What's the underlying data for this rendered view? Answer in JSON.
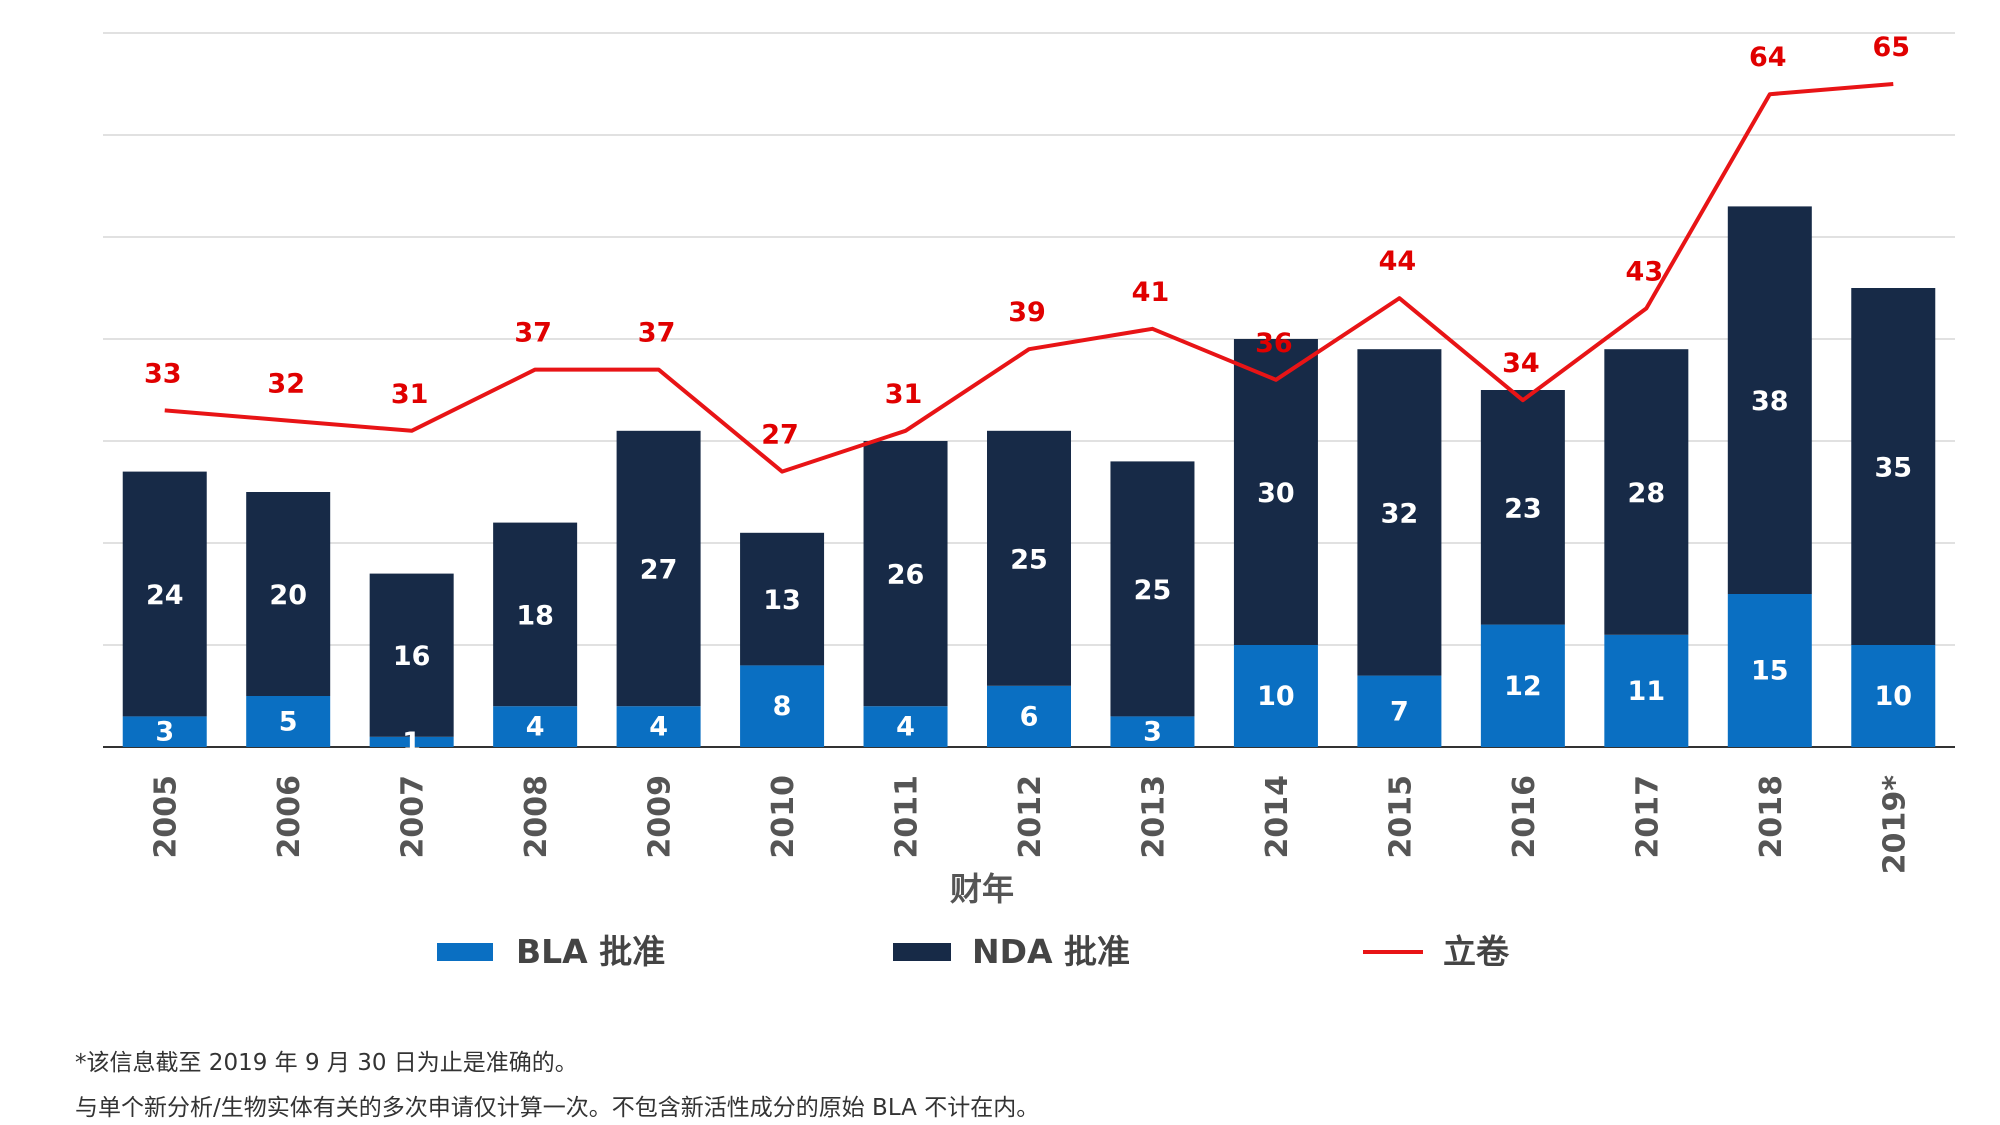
{
  "chart_data": {
    "type": "bar",
    "stacked": true,
    "categories": [
      "2005",
      "2006",
      "2007",
      "2008",
      "2009",
      "2010",
      "2011",
      "2012",
      "2013",
      "2014",
      "2015",
      "2016",
      "2017",
      "2018",
      "2019*"
    ],
    "series": [
      {
        "name": "BLA 批准",
        "kind": "bar",
        "color": "#0a6fc2",
        "values": [
          3,
          5,
          1,
          4,
          4,
          8,
          4,
          6,
          3,
          10,
          7,
          12,
          11,
          15,
          10
        ]
      },
      {
        "name": "NDA 批准",
        "kind": "bar",
        "color": "#172a47",
        "values": [
          24,
          20,
          16,
          18,
          27,
          13,
          26,
          25,
          25,
          30,
          32,
          23,
          28,
          38,
          35
        ]
      },
      {
        "name": "立卷",
        "kind": "line",
        "color": "#e81416",
        "values": [
          33,
          32,
          31,
          37,
          37,
          27,
          31,
          39,
          41,
          36,
          44,
          34,
          43,
          64,
          65
        ]
      }
    ],
    "xlabel": "财年",
    "ylabel": "",
    "ylim": [
      0,
      70
    ],
    "grid": true,
    "legend_position": "bottom"
  },
  "footnotes": [
    "*该信息截至 2019 年 9 月 30 日为止是准确的。",
    "与单个新分析/生物实体有关的多次申请仅计算一次。不包含新活性成分的原始 BLA 不计在内。"
  ]
}
